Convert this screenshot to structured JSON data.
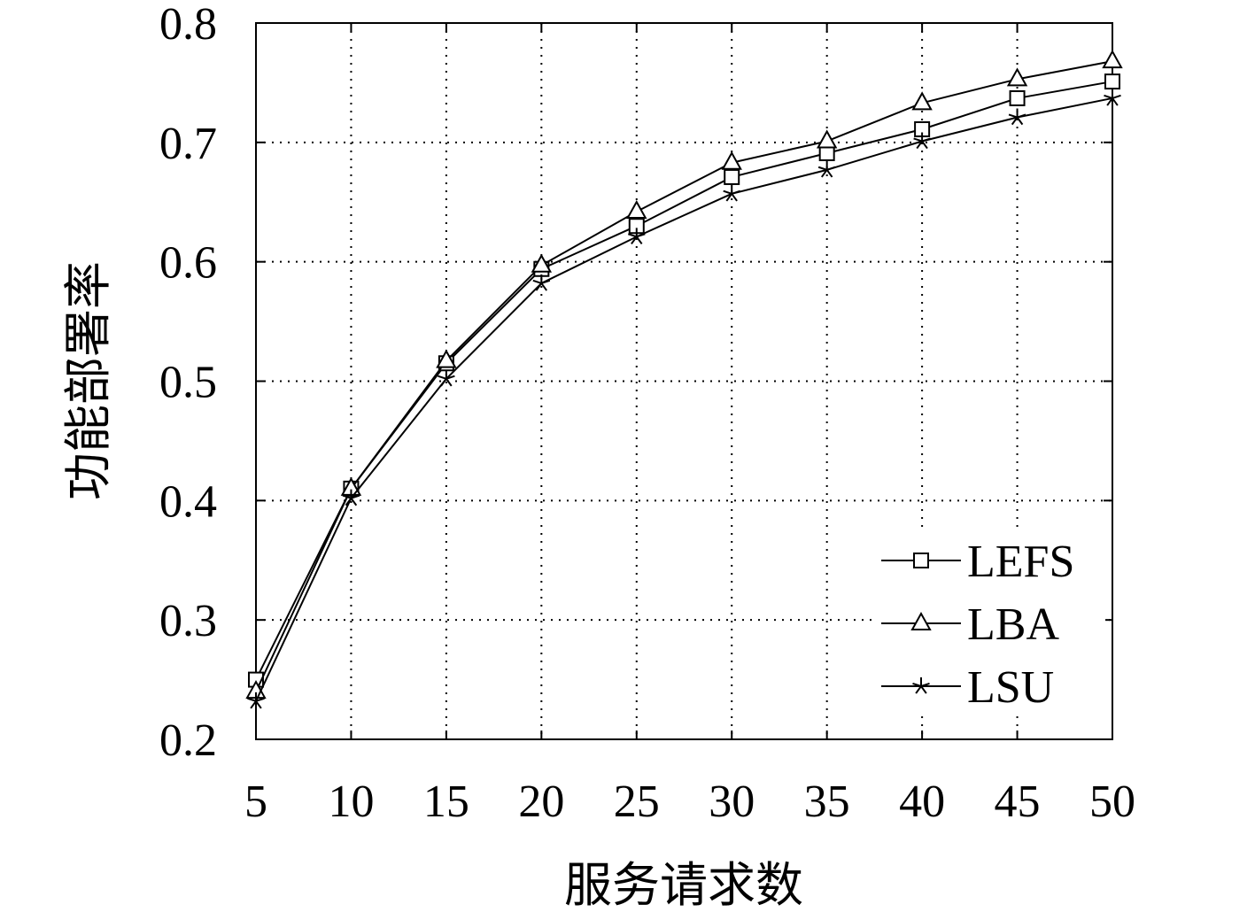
{
  "colors": {
    "background": "#ffffff",
    "foreground": "#000000"
  },
  "chart_data": {
    "type": "line",
    "xlabel": "服务请求数",
    "ylabel": "功能部署率",
    "x": [
      5,
      10,
      15,
      20,
      25,
      30,
      35,
      40,
      45,
      50
    ],
    "xlim": [
      5,
      50
    ],
    "ylim": [
      0.2,
      0.8
    ],
    "x_tick_labels": [
      "5",
      "10",
      "15",
      "20",
      "25",
      "30",
      "35",
      "40",
      "45",
      "50"
    ],
    "y_tick_labels": [
      "0.2",
      "0.3",
      "0.4",
      "0.5",
      "0.6",
      "0.7",
      "0.8"
    ],
    "grid": true,
    "grid_style": "dotted",
    "legend_position": "lower-right",
    "series": [
      {
        "name": "LEFS",
        "marker": "square",
        "color": "#000000",
        "values": [
          0.25,
          0.41,
          0.515,
          0.594,
          0.63,
          0.671,
          0.691,
          0.711,
          0.737,
          0.751
        ]
      },
      {
        "name": "LBA",
        "marker": "triangle",
        "color": "#000000",
        "values": [
          0.24,
          0.41,
          0.517,
          0.597,
          0.642,
          0.683,
          0.701,
          0.733,
          0.753,
          0.768
        ]
      },
      {
        "name": "LSU",
        "marker": "star",
        "color": "#000000",
        "values": [
          0.232,
          0.402,
          0.502,
          0.582,
          0.621,
          0.657,
          0.677,
          0.701,
          0.721,
          0.737
        ]
      }
    ]
  }
}
